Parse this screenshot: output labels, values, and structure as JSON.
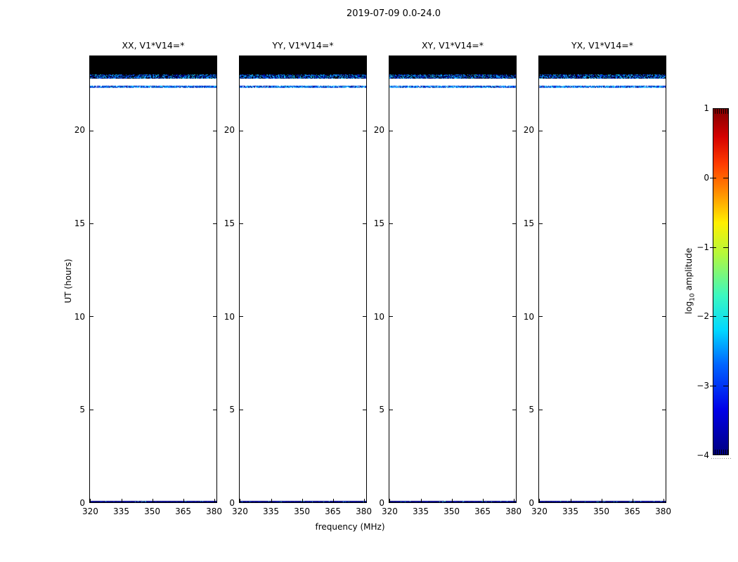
{
  "figure": {
    "title": "2019-07-09 0.0-24.0",
    "xlabel": "frequency (MHz)",
    "ylabel": "UT (hours)",
    "background": "#ffffff"
  },
  "colorbar": {
    "label_pre": "log",
    "label_sub": "10",
    "label_post": " amplitude",
    "tick_labels": [
      "1",
      "0",
      "−1",
      "−2",
      "−3",
      "−4"
    ]
  },
  "chart_data": {
    "type": "heatmap",
    "title": "2019-07-09 0.0-24.0",
    "xlabel": "frequency (MHz)",
    "ylabel": "UT (hours)",
    "x_range": [
      319.5,
      381.5
    ],
    "y_range": [
      0,
      24
    ],
    "x_ticks": [
      320,
      335,
      350,
      365,
      380
    ],
    "y_ticks": [
      20,
      15,
      10,
      5,
      0
    ],
    "grid": false,
    "colorbar": {
      "label": "log10 amplitude",
      "range": [
        -4,
        1
      ],
      "tick_values": [
        1,
        0,
        -1,
        -2,
        -3,
        -4
      ],
      "colormap": "jet",
      "gradient_stops": [
        {
          "color": "#000080",
          "pos": "0%"
        },
        {
          "color": "#0000e8",
          "pos": "13%"
        },
        {
          "color": "#0064ff",
          "pos": "26%"
        },
        {
          "color": "#00d8ff",
          "pos": "36%"
        },
        {
          "color": "#3cf8c0",
          "pos": "46%"
        },
        {
          "color": "#b4f83c",
          "pos": "58%"
        },
        {
          "color": "#fff000",
          "pos": "67%"
        },
        {
          "color": "#ff8c00",
          "pos": "76%"
        },
        {
          "color": "#ff3c00",
          "pos": "84%"
        },
        {
          "color": "#d40000",
          "pos": "92%"
        },
        {
          "color": "#7f0000",
          "pos": "100%"
        }
      ]
    },
    "panels": [
      {
        "title": "XX, V1*V14=*",
        "seed": 1,
        "features": [
          {
            "kind": "band",
            "y_top": 24.0,
            "y_bottom": 23.0,
            "base": "#000000",
            "desc": "saturated/flagged band"
          },
          {
            "kind": "speckles",
            "y_top": 23.0,
            "y_bottom": 22.78,
            "base": "#000000",
            "density": 0.62,
            "palette": [
              "#0000bb",
              "#0033ee",
              "#0077ff",
              "#00bbff",
              "#33e0ff",
              "#000077"
            ],
            "desc": "noisy blue row, log10 amp ~ -2.5 to -3.5"
          },
          {
            "kind": "speckles",
            "y_top": 22.42,
            "y_bottom": 22.3,
            "base": null,
            "density": 0.93,
            "palette": [
              "#000088",
              "#0022cc",
              "#0055ff",
              "#00aaff",
              "#33ddff"
            ],
            "desc": "thin dashed blue row"
          },
          {
            "kind": "speckles",
            "y_top": 0.09,
            "y_bottom": 0.0,
            "base": "#000080",
            "density": 0.5,
            "palette": [
              "#000066",
              "#000099",
              "#0011aa"
            ],
            "sparkle": {
              "palette": [
                "#00ccbb",
                "#33ddff",
                "#55eecc",
                "#00ffaa"
              ],
              "rate": 0.06,
              "right_bias": true
            },
            "desc": "faint navy row at 0h, log10 amp ~ -4"
          }
        ]
      },
      {
        "title": "YY, V1*V14=*",
        "seed": 2,
        "features": [
          {
            "kind": "band",
            "y_top": 24.0,
            "y_bottom": 23.0,
            "base": "#000000",
            "desc": "saturated/flagged band"
          },
          {
            "kind": "speckles",
            "y_top": 23.0,
            "y_bottom": 22.78,
            "base": "#000000",
            "density": 0.62,
            "palette": [
              "#0000bb",
              "#0033ee",
              "#0077ff",
              "#00bbff",
              "#33e0ff",
              "#000077"
            ],
            "desc": "noisy blue row"
          },
          {
            "kind": "speckles",
            "y_top": 22.42,
            "y_bottom": 22.3,
            "base": null,
            "density": 0.93,
            "palette": [
              "#000088",
              "#0022cc",
              "#0055ff",
              "#00aaff",
              "#33ddff"
            ],
            "desc": "thin dashed blue row"
          },
          {
            "kind": "speckles",
            "y_top": 0.09,
            "y_bottom": 0.0,
            "base": "#000080",
            "density": 0.5,
            "palette": [
              "#000066",
              "#000099",
              "#0011aa"
            ],
            "sparkle": {
              "palette": [
                "#00ccbb",
                "#33ddff",
                "#55eecc",
                "#00ffaa"
              ],
              "rate": 0.06,
              "right_bias": true
            },
            "desc": "faint navy row at 0h"
          }
        ]
      },
      {
        "title": "XY, V1*V14=*",
        "seed": 3,
        "features": [
          {
            "kind": "band",
            "y_top": 24.0,
            "y_bottom": 23.0,
            "base": "#000000",
            "desc": "saturated/flagged band"
          },
          {
            "kind": "speckles",
            "y_top": 23.0,
            "y_bottom": 22.78,
            "base": "#000000",
            "density": 0.62,
            "palette": [
              "#0000bb",
              "#0033ee",
              "#0077ff",
              "#00bbff",
              "#33e0ff",
              "#000077"
            ],
            "desc": "noisy blue row"
          },
          {
            "kind": "speckles",
            "y_top": 22.42,
            "y_bottom": 22.3,
            "base": null,
            "density": 0.93,
            "palette": [
              "#000088",
              "#0022cc",
              "#0055ff",
              "#00aaff",
              "#33ddff"
            ],
            "desc": "thin dashed blue row"
          },
          {
            "kind": "speckles",
            "y_top": 0.09,
            "y_bottom": 0.0,
            "base": "#000080",
            "density": 0.5,
            "palette": [
              "#000066",
              "#000099",
              "#0011aa"
            ],
            "sparkle": {
              "palette": [
                "#00ccbb",
                "#33ddff",
                "#55eecc",
                "#00ffaa"
              ],
              "rate": 0.06,
              "right_bias": true
            },
            "desc": "faint navy row at 0h"
          }
        ]
      },
      {
        "title": "YX, V1*V14=*",
        "seed": 4,
        "features": [
          {
            "kind": "band",
            "y_top": 24.0,
            "y_bottom": 23.0,
            "base": "#000000",
            "desc": "saturated/flagged band"
          },
          {
            "kind": "speckles",
            "y_top": 23.0,
            "y_bottom": 22.78,
            "base": "#000000",
            "density": 0.62,
            "palette": [
              "#0000bb",
              "#0033ee",
              "#0077ff",
              "#00bbff",
              "#33e0ff",
              "#000077"
            ],
            "desc": "noisy blue row"
          },
          {
            "kind": "speckles",
            "y_top": 22.42,
            "y_bottom": 22.3,
            "base": null,
            "density": 0.93,
            "palette": [
              "#000088",
              "#0022cc",
              "#0055ff",
              "#00aaff",
              "#33ddff"
            ],
            "desc": "thin dashed blue row"
          },
          {
            "kind": "speckles",
            "y_top": 0.09,
            "y_bottom": 0.0,
            "base": "#000080",
            "density": 0.5,
            "palette": [
              "#000066",
              "#000099",
              "#0011aa"
            ],
            "sparkle": {
              "palette": [
                "#00ccbb",
                "#33ddff",
                "#55eecc",
                "#00ffaa"
              ],
              "rate": 0.06,
              "right_bias": true
            },
            "desc": "faint navy row at 0h"
          }
        ]
      }
    ]
  }
}
